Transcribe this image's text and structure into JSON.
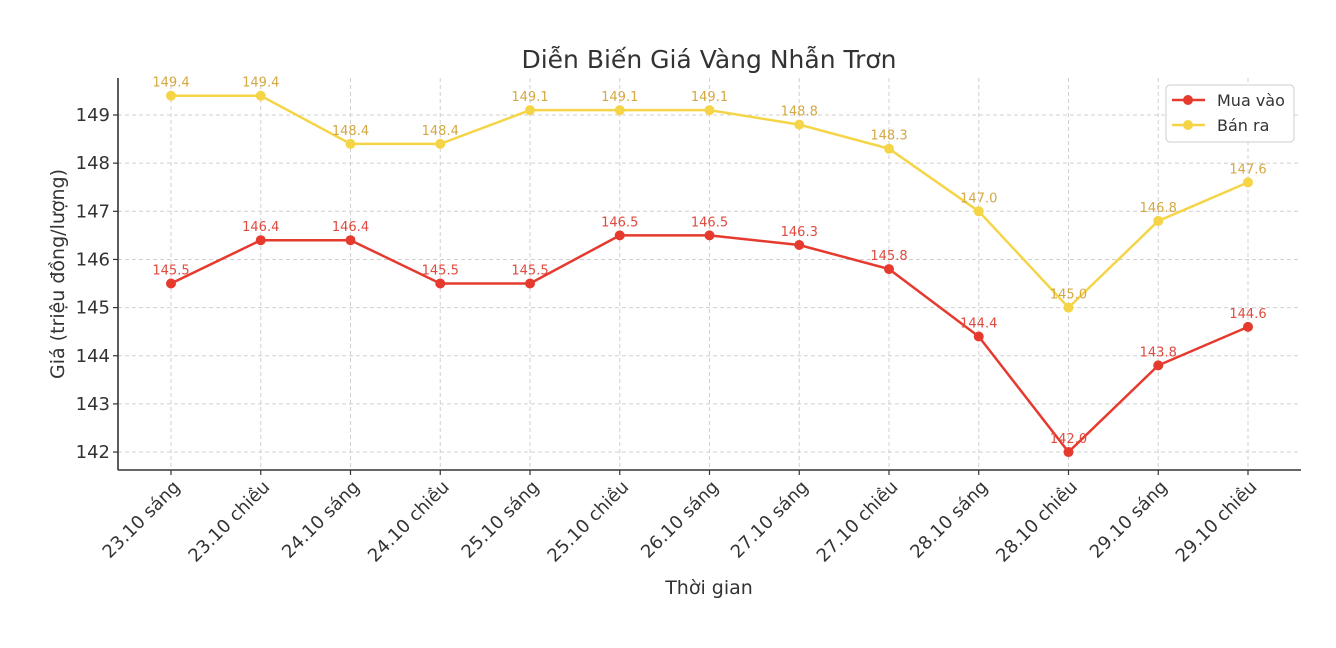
{
  "chart_data": {
    "type": "line",
    "title": "Diễn Biến Giá Vàng Nhẫn Trơn",
    "xlabel": "Thời gian",
    "ylabel": "Giá (triệu đồng/lượng)",
    "categories": [
      "23.10 sáng",
      "23.10 chiều",
      "24.10 sáng",
      "24.10 chiều",
      "25.10 sáng",
      "25.10 chiều",
      "26.10 sáng",
      "27.10 sáng",
      "27.10 chiều",
      "28.10 sáng",
      "28.10 chiều",
      "29.10 sáng",
      "29.10 chiều"
    ],
    "series": [
      {
        "name": "Mua vào",
        "color": "#e63a2e",
        "label_color": "#e04a3e",
        "values": [
          145.5,
          146.4,
          146.4,
          145.5,
          145.5,
          146.5,
          146.5,
          146.3,
          145.8,
          144.4,
          142.0,
          143.8,
          144.6
        ]
      },
      {
        "name": "Bán ra",
        "color": "#f5d547",
        "label_color": "#d4a843",
        "values": [
          149.4,
          149.4,
          148.4,
          148.4,
          149.1,
          149.1,
          149.1,
          148.8,
          148.3,
          147.0,
          145.0,
          146.8,
          147.6
        ]
      }
    ],
    "yticks": [
      142,
      143,
      144,
      145,
      146,
      147,
      148,
      149
    ],
    "ylim": [
      141.65,
      149.75
    ],
    "grid": true,
    "legend_position": "upper right"
  }
}
